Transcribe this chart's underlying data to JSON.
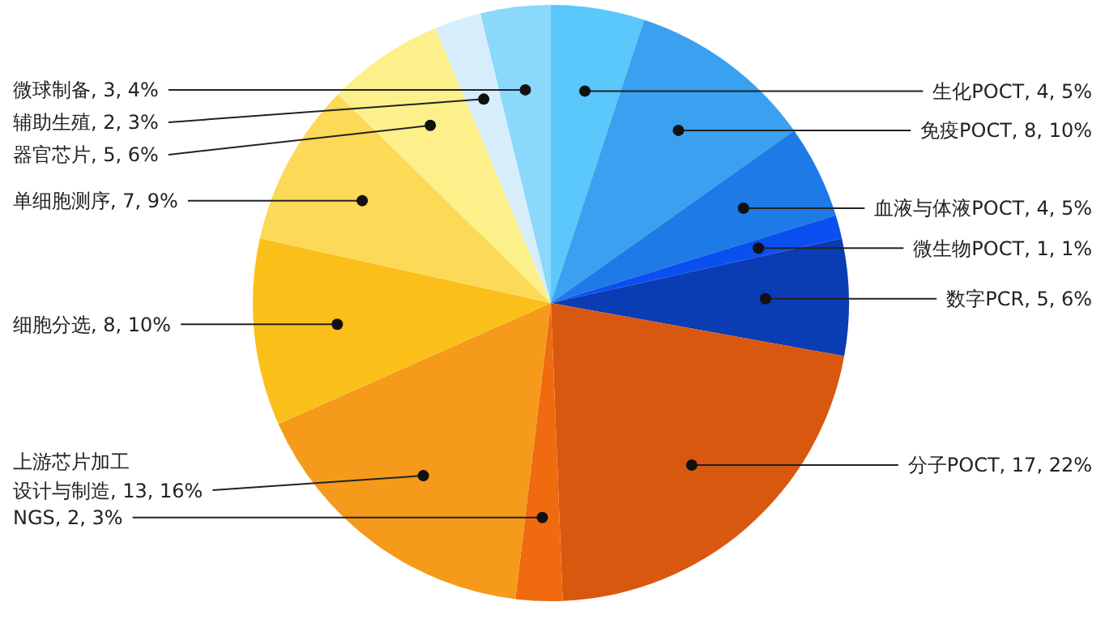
{
  "chart_data": {
    "type": "pie",
    "categories": [
      "生化POCT",
      "免疫POCT",
      "血液与体液POCT",
      "微生物POCT",
      "数字PCR",
      "分子POCT",
      "NGS",
      "上游芯片加工设计与制造",
      "细胞分选",
      "单细胞测序",
      "器官芯片",
      "辅助生殖",
      "微球制备"
    ],
    "values": [
      4,
      8,
      4,
      1,
      5,
      17,
      2,
      13,
      8,
      7,
      5,
      2,
      3
    ],
    "value_labels": [
      "4, 5%",
      "8, 10%",
      "4, 5%",
      "1, 1%",
      "5, 6%",
      "17, 22%",
      "2, 3%",
      "13, 16%",
      "8, 10%",
      "7, 9%",
      "5, 6%",
      "2, 3%",
      "3, 4%"
    ],
    "colors": [
      "#5ac8fa",
      "#3aa0f0",
      "#1e7ae6",
      "#0a50f0",
      "#0a3cb4",
      "#d9580f",
      "#f06a10",
      "#f59a1a",
      "#fbbf1a",
      "#fcd957",
      "#fdf08a",
      "#d6eefb",
      "#8ad8fa"
    ]
  }
}
